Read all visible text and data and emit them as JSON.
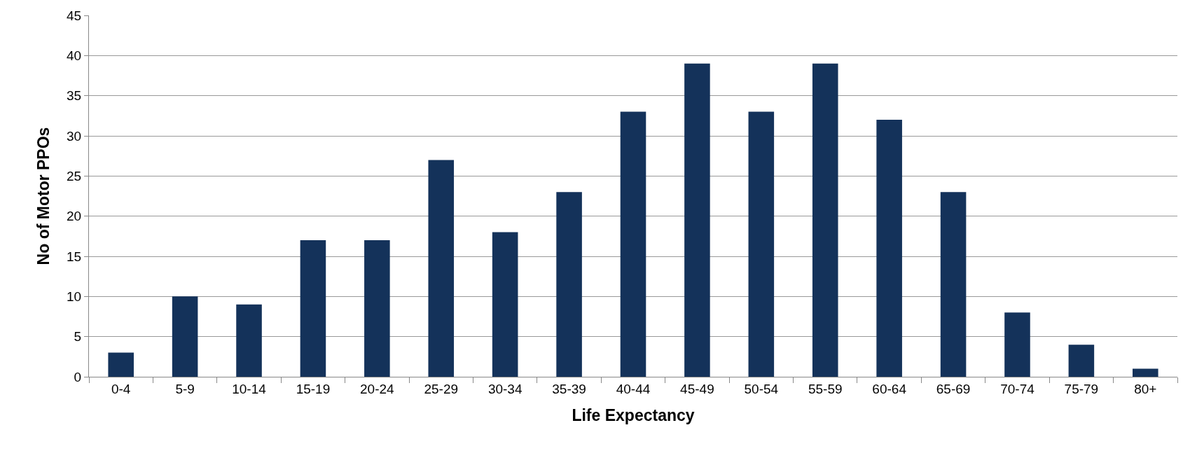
{
  "chart_data": {
    "type": "bar",
    "xlabel": "Life Expectancy",
    "ylabel": "No of Motor PPOs",
    "categories": [
      "0-4",
      "5-9",
      "10-14",
      "15-19",
      "20-24",
      "25-29",
      "30-34",
      "35-39",
      "40-44",
      "45-49",
      "50-54",
      "55-59",
      "60-64",
      "65-69",
      "70-74",
      "75-79",
      "80+"
    ],
    "values": [
      3,
      10,
      9,
      17,
      17,
      27,
      18,
      23,
      33,
      39,
      33,
      39,
      32,
      23,
      8,
      4,
      1
    ],
    "color": "#14325a",
    "ylim": [
      0,
      45
    ],
    "yticks": [
      0,
      5,
      10,
      15,
      20,
      25,
      30,
      35,
      40,
      45
    ],
    "grid": "y",
    "legend": false
  }
}
